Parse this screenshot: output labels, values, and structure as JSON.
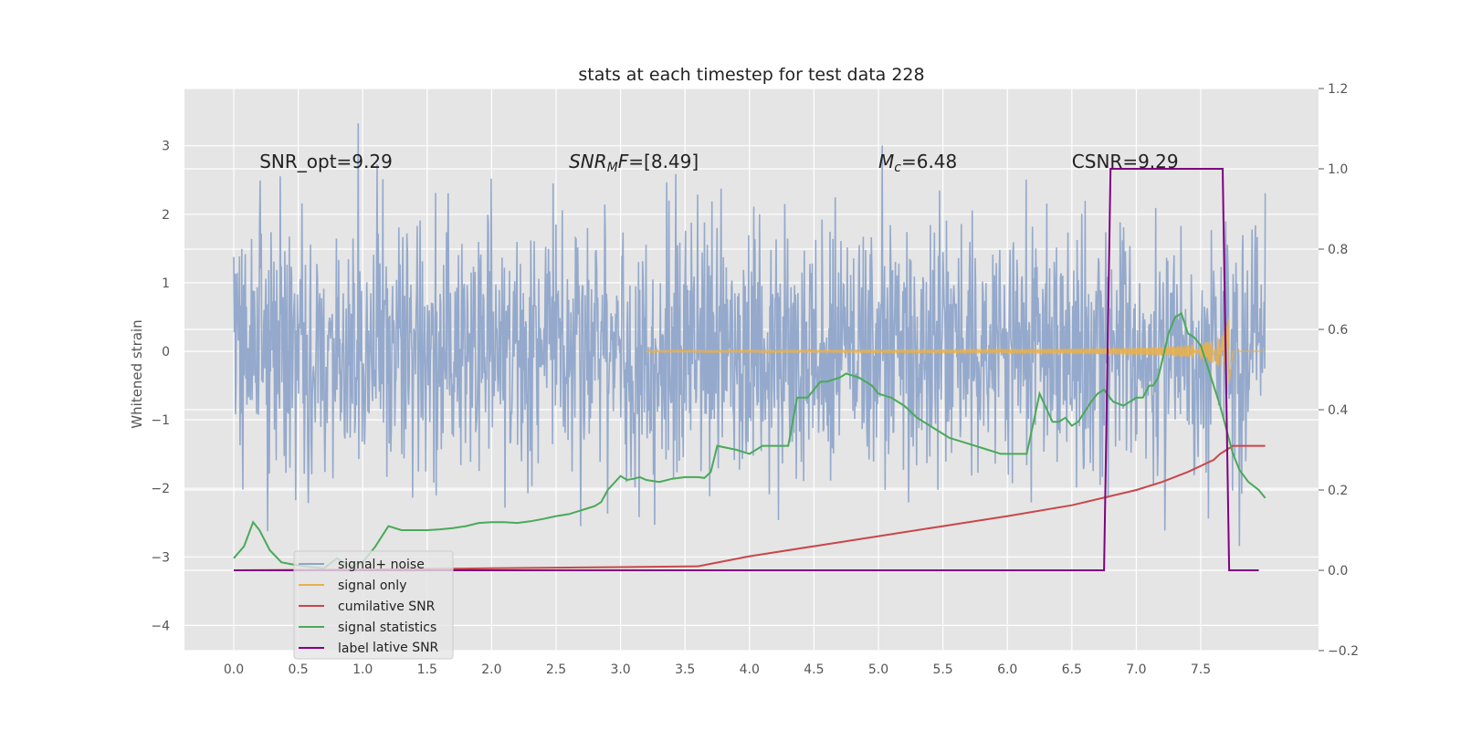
{
  "chart_data": {
    "type": "line",
    "title": "stats at each timestep for test data 228",
    "xlabel": "",
    "ylabel": "Whitened strain",
    "xlim": [
      -0.4,
      8.2
    ],
    "ylim": [
      -4.45,
      3.85
    ],
    "y2lim": [
      -0.2,
      1.2
    ],
    "grid": true,
    "x_ticks": [
      "0.0",
      "0.5",
      "1.0",
      "1.5",
      "2.0",
      "2.5",
      "3.0",
      "3.5",
      "4.0",
      "4.5",
      "5.0",
      "5.5",
      "6.0",
      "6.5",
      "7.0",
      "7.5"
    ],
    "y_ticks": [
      "3",
      "2",
      "1",
      "0",
      "−1",
      "−2",
      "−3",
      "−4"
    ],
    "y2_ticks": [
      "1.2",
      "1.0",
      "0.8",
      "0.6",
      "0.4",
      "0.2",
      "0.0",
      "−0.2"
    ],
    "annotations": [
      {
        "text": "SNR_opt=9.29",
        "x": 0.2
      },
      {
        "text": "SNR_MF=[8.49]",
        "x": 2.6
      },
      {
        "text": "M_c=6.48",
        "x": 5.0
      },
      {
        "text": "CSNR=9.29",
        "x": 6.5
      }
    ],
    "legend_placement": "lower-left",
    "series": [
      {
        "name": "signal+ noise",
        "axis": "left",
        "color": "#8fa5ca",
        "t_range": [
          0,
          8.0
        ],
        "noise_sigma": 1.0,
        "note": "dense whitened strain noise"
      },
      {
        "name": "signal only",
        "axis": "left",
        "color": "#e8b04c",
        "t_range": [
          0,
          8.0
        ],
        "note": "chirp, amplitude grows to ~0.7 near t=7.7 then ends"
      },
      {
        "name": "cumilative SNR",
        "axis": "right",
        "color": "#c8474b",
        "x": [
          0,
          1,
          2,
          3,
          3.6,
          4,
          4.5,
          5,
          5.5,
          6,
          6.5,
          7,
          7.2,
          7.4,
          7.5,
          7.6,
          7.65,
          7.7,
          7.75,
          8.0
        ],
        "y": [
          0.0,
          0.002,
          0.005,
          0.008,
          0.01,
          0.035,
          0.06,
          0.085,
          0.11,
          0.135,
          0.162,
          0.2,
          0.22,
          0.245,
          0.26,
          0.275,
          0.29,
          0.3,
          0.31,
          0.31
        ]
      },
      {
        "name": "signal statistics",
        "axis": "right",
        "color": "#4aa95a",
        "x": [
          0,
          0.08,
          0.15,
          0.2,
          0.28,
          0.37,
          0.45,
          0.55,
          0.7,
          0.8,
          0.9,
          1.0,
          1.1,
          1.2,
          1.3,
          1.4,
          1.5,
          1.6,
          1.7,
          1.8,
          1.9,
          2.0,
          2.1,
          2.2,
          2.3,
          2.4,
          2.5,
          2.6,
          2.7,
          2.8,
          2.85,
          2.9,
          3.0,
          3.05,
          3.1,
          3.15,
          3.2,
          3.3,
          3.4,
          3.5,
          3.6,
          3.65,
          3.7,
          3.75,
          3.9,
          4.0,
          4.1,
          4.2,
          4.3,
          4.37,
          4.45,
          4.5,
          4.55,
          4.6,
          4.7,
          4.75,
          4.85,
          4.95,
          5.0,
          5.1,
          5.2,
          5.3,
          5.35,
          5.45,
          5.55,
          5.65,
          5.75,
          5.85,
          5.95,
          6.05,
          6.15,
          6.25,
          6.35,
          6.4,
          6.45,
          6.5,
          6.55,
          6.65,
          6.7,
          6.75,
          6.82,
          6.9,
          6.95,
          7.0,
          7.05,
          7.1,
          7.13,
          7.17,
          7.25,
          7.3,
          7.35,
          7.4,
          7.45,
          7.5,
          7.55,
          7.6,
          7.65,
          7.7,
          7.75,
          7.8,
          7.87,
          7.95,
          8.0
        ],
        "y": [
          0.03,
          0.06,
          0.12,
          0.1,
          0.05,
          0.02,
          0.015,
          0.01,
          0.005,
          0.03,
          0.01,
          0.02,
          0.06,
          0.11,
          0.1,
          0.1,
          0.1,
          0.102,
          0.105,
          0.11,
          0.118,
          0.12,
          0.12,
          0.118,
          0.122,
          0.128,
          0.135,
          0.14,
          0.15,
          0.16,
          0.17,
          0.2,
          0.235,
          0.225,
          0.228,
          0.232,
          0.225,
          0.22,
          0.228,
          0.232,
          0.232,
          0.23,
          0.245,
          0.31,
          0.3,
          0.29,
          0.31,
          0.31,
          0.31,
          0.43,
          0.43,
          0.45,
          0.47,
          0.47,
          0.48,
          0.49,
          0.48,
          0.46,
          0.44,
          0.43,
          0.41,
          0.38,
          0.37,
          0.35,
          0.33,
          0.32,
          0.31,
          0.3,
          0.29,
          0.29,
          0.29,
          0.44,
          0.37,
          0.37,
          0.38,
          0.36,
          0.37,
          0.42,
          0.44,
          0.45,
          0.42,
          0.41,
          0.42,
          0.43,
          0.43,
          0.46,
          0.46,
          0.48,
          0.59,
          0.63,
          0.64,
          0.59,
          0.58,
          0.56,
          0.51,
          0.46,
          0.41,
          0.35,
          0.29,
          0.25,
          0.22,
          0.2,
          0.18
        ]
      },
      {
        "name": "label",
        "axis": "right",
        "color": "#800080",
        "x": [
          0,
          6.75,
          6.8,
          7.67,
          7.72,
          7.95
        ],
        "y": [
          0,
          0,
          1,
          1,
          0,
          0
        ]
      }
    ],
    "legend": [
      {
        "label": "signal+ noise",
        "color": "#8fa5ca"
      },
      {
        "label": "signal only",
        "color": "#e8b04c"
      },
      {
        "label": "cumilative SNR",
        "color": "#c8474b"
      },
      {
        "label": "signal statistics",
        "color": "#4aa95a"
      },
      {
        "label": "label",
        "color": "#800080"
      }
    ],
    "legend_overlap_text": "lative SNR"
  }
}
